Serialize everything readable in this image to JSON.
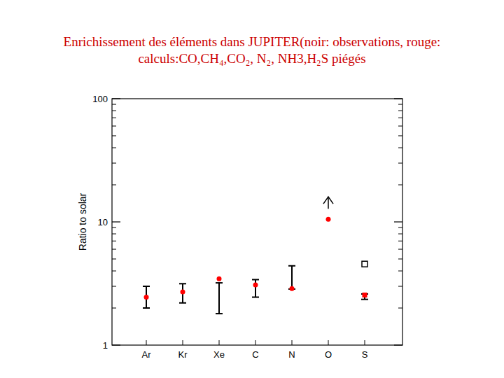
{
  "chart_data": {
    "type": "scatter",
    "title": [
      "Enrichissement des éléments dans JUPITER(noir: observations, rouge:",
      "calculs:CO,CH₄,CO₂, N₂, NH3,H₂S piégés"
    ],
    "y_label": "Ratio to solar",
    "categories": [
      "Ar",
      "Kr",
      "Xe",
      "C",
      "N",
      "O",
      "S"
    ],
    "log": "y",
    "ylim": [
      1,
      100
    ],
    "yticks": [
      1,
      10,
      100
    ],
    "yticks_minor": [
      2,
      3,
      4,
      5,
      6,
      7,
      8,
      9,
      20,
      30,
      40,
      50,
      60,
      70,
      80,
      90
    ],
    "series": [
      {
        "type": "errorbar",
        "color": "#000000",
        "low": [
          2.0,
          2.2,
          1.8,
          2.45,
          2.85,
          12.8,
          2.35
        ],
        "high": [
          3.0,
          3.15,
          3.2,
          3.4,
          4.4,
          null,
          2.6
        ]
      },
      {
        "type": "scatter",
        "color": "#000000",
        "marker": "square-open",
        "values": [
          null,
          null,
          null,
          null,
          null,
          null,
          4.55
        ]
      },
      {
        "type": "scatter",
        "color": "#ff0000",
        "marker": "circle",
        "values": [
          2.45,
          2.7,
          3.45,
          3.08,
          2.88,
          10.5,
          null
        ]
      },
      {
        "type": "scatter",
        "color": "#ff0000",
        "marker": "square",
        "values": [
          null,
          null,
          null,
          null,
          null,
          null,
          2.55
        ]
      }
    ]
  }
}
